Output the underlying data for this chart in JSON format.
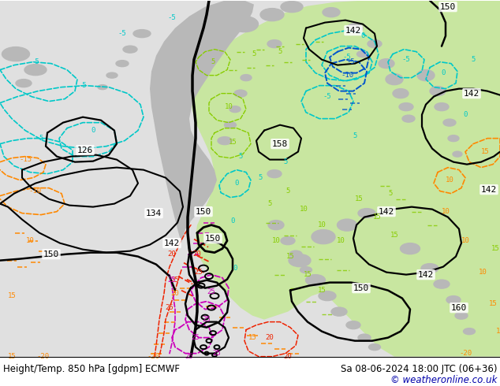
{
  "title_left": "Height/Temp. 850 hPa [gdpm] ECMWF",
  "title_right": "Sa 08-06-2024 18:00 JTC (06+36)",
  "copyright": "© weatheronline.co.uk",
  "bg_color": "#e8e8e8",
  "ocean_color": "#e0e0e0",
  "land_light_color": "#c8e6a0",
  "land_gray_color": "#b8b8b8",
  "geop_color": "#000000",
  "cyan_color": "#00c8c8",
  "blue_color": "#0055cc",
  "orange_color": "#ff8800",
  "red_color": "#ee2200",
  "magenta_color": "#cc00bb",
  "lime_color": "#88cc00",
  "title_fontsize": 8.5,
  "fig_width": 6.34,
  "fig_height": 4.9,
  "dpi": 100
}
